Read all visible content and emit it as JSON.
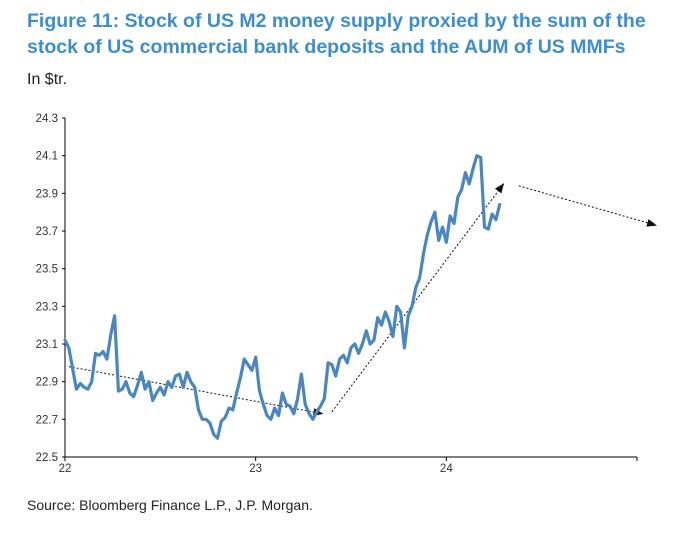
{
  "figure": {
    "title_line1": "Figure 11: Stock of US M2 money supply proxied by the sum of the",
    "title_line2": "stock of US commercial bank deposits and the AUM of US MMFs",
    "unit": "In $tr.",
    "source": "Source: Bloomberg Finance L.P., J.P. Morgan."
  },
  "colors": {
    "title": "#3d8ecf",
    "series": "#4a86c0",
    "annotation": "#111111"
  },
  "chart_data": {
    "type": "line",
    "title": "Figure 11: Stock of US M2 money supply proxied by the sum of the stock of US commercial bank deposits and the AUM of US MMFs",
    "xlabel": "",
    "ylabel": "In $tr.",
    "xlim": [
      22,
      25
    ],
    "ylim": [
      22.5,
      24.3
    ],
    "x_ticks": [
      22,
      23,
      24
    ],
    "x_tick_labels": [
      "22",
      "23",
      "24"
    ],
    "y_ticks": [
      22.5,
      22.7,
      22.9,
      23.1,
      23.3,
      23.5,
      23.7,
      23.9,
      24.1,
      24.3
    ],
    "y_tick_labels": [
      "22.5",
      "22.7",
      "22.9",
      "23.1",
      "23.3",
      "23.5",
      "23.7",
      "23.9",
      "24.1",
      "24.3"
    ],
    "grid": false,
    "series": [
      {
        "values": [
          [
            22.0,
            23.12
          ],
          [
            22.02,
            23.08
          ],
          [
            22.04,
            22.97
          ],
          [
            22.06,
            22.86
          ],
          [
            22.08,
            22.89
          ],
          [
            22.1,
            22.87
          ],
          [
            22.12,
            22.86
          ],
          [
            22.14,
            22.9
          ],
          [
            22.16,
            23.05
          ],
          [
            22.18,
            23.04
          ],
          [
            22.2,
            23.06
          ],
          [
            22.22,
            23.02
          ],
          [
            22.24,
            23.15
          ],
          [
            22.26,
            23.25
          ],
          [
            22.28,
            22.85
          ],
          [
            22.3,
            22.86
          ],
          [
            22.32,
            22.9
          ],
          [
            22.34,
            22.84
          ],
          [
            22.36,
            22.82
          ],
          [
            22.38,
            22.88
          ],
          [
            22.4,
            22.95
          ],
          [
            22.42,
            22.86
          ],
          [
            22.44,
            22.9
          ],
          [
            22.46,
            22.8
          ],
          [
            22.48,
            22.84
          ],
          [
            22.5,
            22.87
          ],
          [
            22.52,
            22.83
          ],
          [
            22.54,
            22.9
          ],
          [
            22.56,
            22.87
          ],
          [
            22.58,
            22.93
          ],
          [
            22.6,
            22.94
          ],
          [
            22.62,
            22.87
          ],
          [
            22.64,
            22.95
          ],
          [
            22.66,
            22.9
          ],
          [
            22.68,
            22.87
          ],
          [
            22.7,
            22.75
          ],
          [
            22.72,
            22.7
          ],
          [
            22.74,
            22.7
          ],
          [
            22.76,
            22.68
          ],
          [
            22.78,
            22.62
          ],
          [
            22.8,
            22.6
          ],
          [
            22.82,
            22.69
          ],
          [
            22.84,
            22.71
          ],
          [
            22.86,
            22.76
          ],
          [
            22.88,
            22.75
          ],
          [
            22.9,
            22.84
          ],
          [
            22.92,
            22.92
          ],
          [
            22.94,
            23.02
          ],
          [
            22.96,
            22.99
          ],
          [
            22.98,
            22.96
          ],
          [
            23.0,
            23.03
          ],
          [
            23.02,
            22.85
          ],
          [
            23.04,
            22.78
          ],
          [
            23.06,
            22.72
          ],
          [
            23.08,
            22.7
          ],
          [
            23.1,
            22.76
          ],
          [
            23.12,
            22.72
          ],
          [
            23.14,
            22.84
          ],
          [
            23.16,
            22.78
          ],
          [
            23.18,
            22.77
          ],
          [
            23.2,
            22.73
          ],
          [
            23.22,
            22.81
          ],
          [
            23.24,
            22.94
          ],
          [
            23.26,
            22.78
          ],
          [
            23.28,
            22.73
          ],
          [
            23.3,
            22.7
          ],
          [
            23.32,
            22.74
          ],
          [
            23.34,
            22.77
          ],
          [
            23.36,
            22.81
          ],
          [
            23.38,
            23.0
          ],
          [
            23.4,
            22.99
          ],
          [
            23.42,
            22.93
          ],
          [
            23.44,
            23.02
          ],
          [
            23.46,
            23.04
          ],
          [
            23.48,
            23.0
          ],
          [
            23.5,
            23.08
          ],
          [
            23.52,
            23.1
          ],
          [
            23.54,
            23.05
          ],
          [
            23.56,
            23.1
          ],
          [
            23.58,
            23.17
          ],
          [
            23.6,
            23.1
          ],
          [
            23.62,
            23.12
          ],
          [
            23.64,
            23.24
          ],
          [
            23.66,
            23.2
          ],
          [
            23.68,
            23.27
          ],
          [
            23.7,
            23.22
          ],
          [
            23.72,
            23.14
          ],
          [
            23.74,
            23.3
          ],
          [
            23.76,
            23.27
          ],
          [
            23.78,
            23.08
          ],
          [
            23.8,
            23.25
          ],
          [
            23.82,
            23.3
          ],
          [
            23.84,
            23.4
          ],
          [
            23.86,
            23.45
          ],
          [
            23.88,
            23.58
          ],
          [
            23.9,
            23.68
          ],
          [
            23.92,
            23.75
          ],
          [
            23.94,
            23.8
          ],
          [
            23.96,
            23.65
          ],
          [
            23.98,
            23.72
          ],
          [
            24.0,
            23.64
          ],
          [
            24.02,
            23.78
          ],
          [
            24.04,
            23.74
          ],
          [
            24.06,
            23.88
          ],
          [
            24.08,
            23.92
          ],
          [
            24.1,
            24.01
          ],
          [
            24.12,
            23.95
          ],
          [
            24.14,
            24.03
          ],
          [
            24.16,
            24.1
          ],
          [
            24.18,
            24.09
          ],
          [
            24.2,
            23.72
          ],
          [
            24.22,
            23.71
          ],
          [
            24.24,
            23.79
          ],
          [
            24.26,
            23.76
          ],
          [
            24.28,
            23.84
          ]
        ]
      }
    ],
    "annotations": [
      {
        "type": "arrow",
        "from": [
          22.02,
          22.98
        ],
        "to": [
          23.35,
          22.73
        ]
      },
      {
        "type": "arrow",
        "from": [
          23.4,
          22.74
        ],
        "to": [
          24.3,
          23.95
        ]
      },
      {
        "type": "arrow",
        "from": [
          24.38,
          23.94
        ],
        "to": [
          25.1,
          23.73
        ]
      }
    ]
  }
}
